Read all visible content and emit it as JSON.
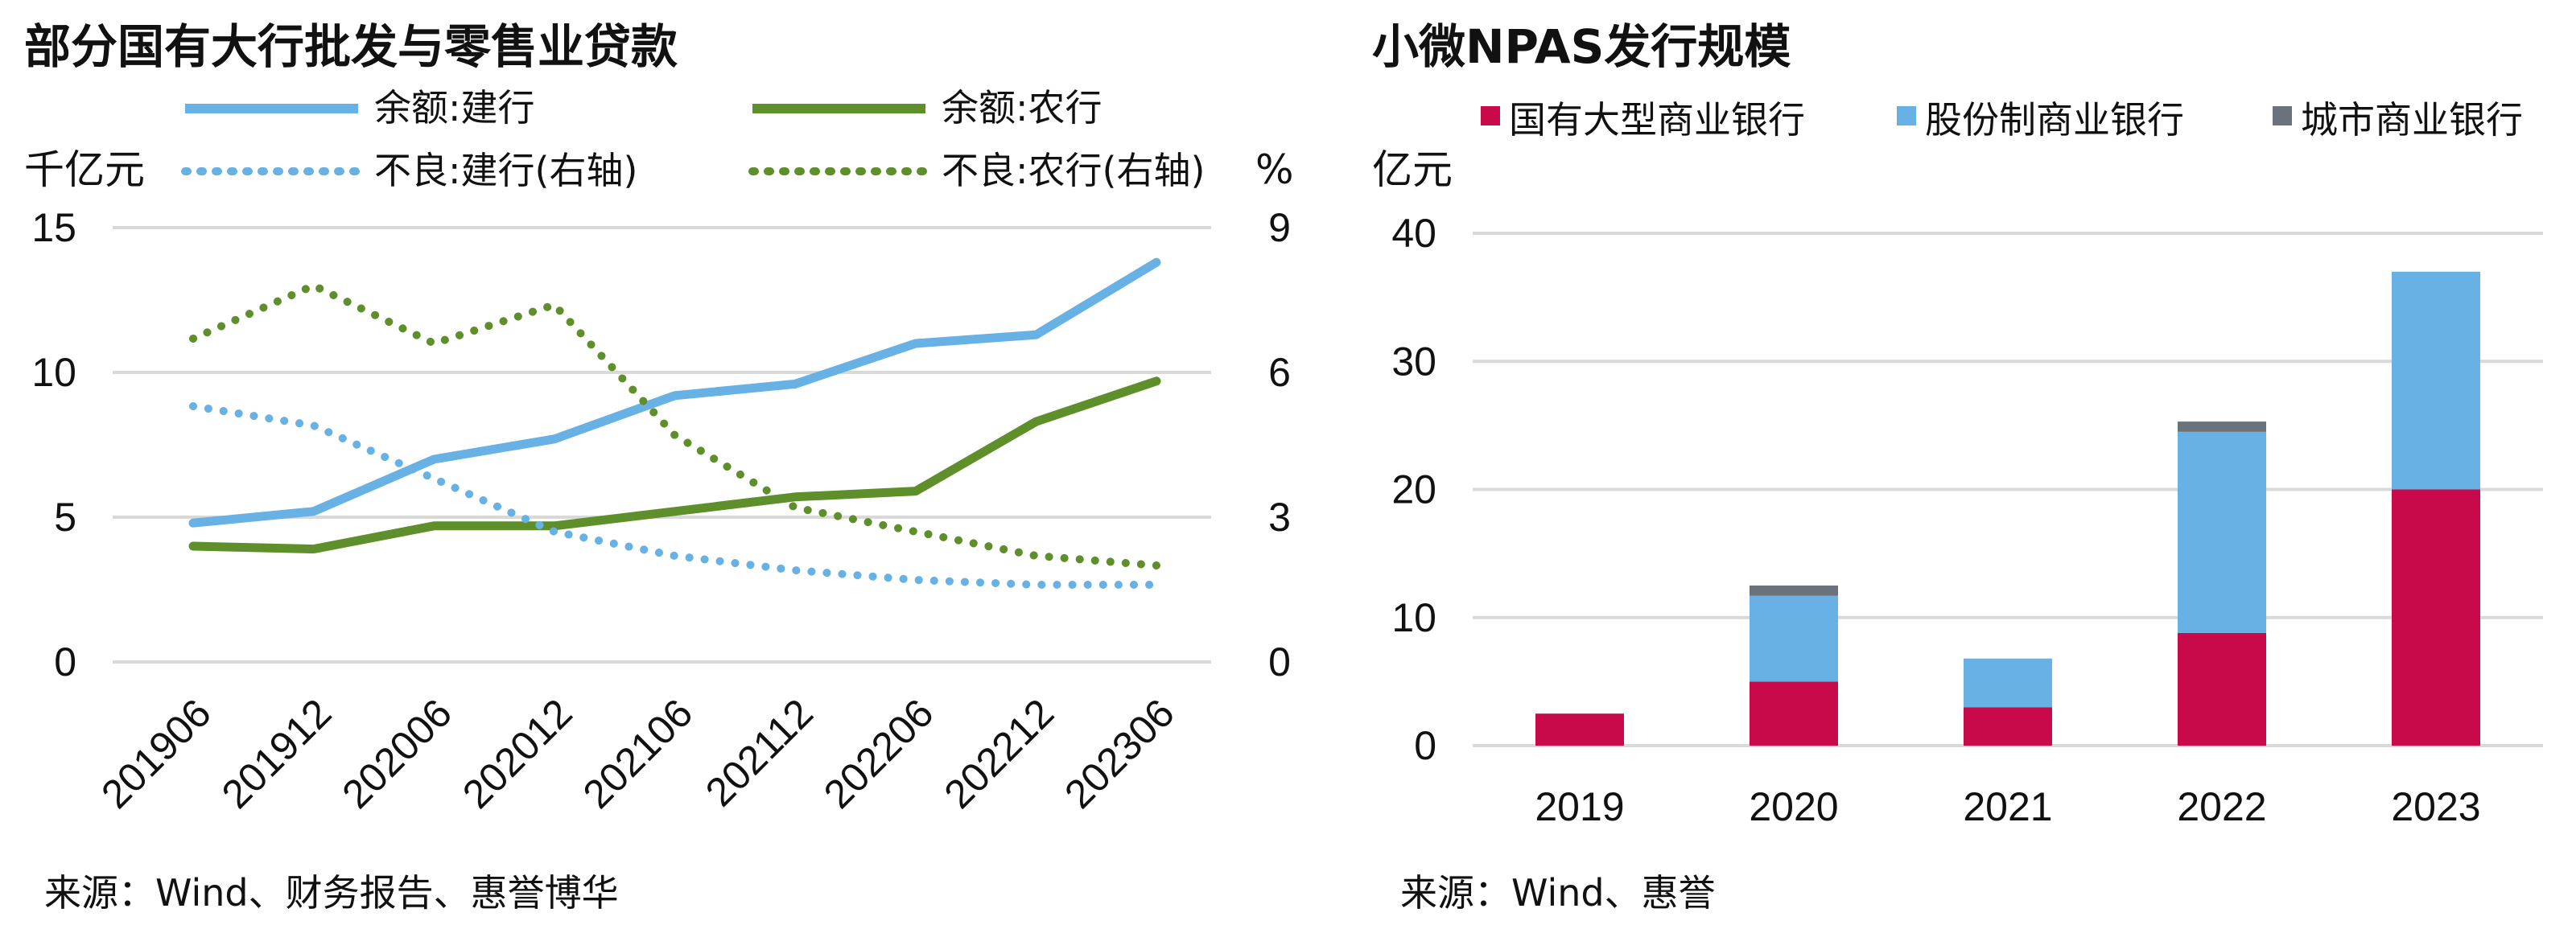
{
  "chart_data": [
    {
      "type": "line",
      "title": "部分国有大行批发与零售业贷款",
      "y_left_unit": "千亿元",
      "y_right_unit": "%",
      "ylim_left": [
        0,
        15
      ],
      "ylim_right": [
        0,
        9
      ],
      "y_left_ticks": [
        "0",
        "5",
        "10",
        "15"
      ],
      "y_right_ticks": [
        "0",
        "3",
        "6",
        "9"
      ],
      "categories": [
        "201906",
        "201912",
        "202006",
        "202012",
        "202106",
        "202112",
        "202206",
        "202212",
        "202306"
      ],
      "series": [
        {
          "name": "余额:建行",
          "axis": "left",
          "style": "solid",
          "color": "#67b1e4",
          "values": [
            4.8,
            5.2,
            7.0,
            7.7,
            9.2,
            9.6,
            11.0,
            11.3,
            13.8
          ]
        },
        {
          "name": "余额:农行",
          "axis": "left",
          "style": "solid",
          "color": "#5f8f2a",
          "values": [
            4.0,
            3.9,
            4.7,
            4.7,
            5.2,
            5.7,
            5.9,
            8.3,
            9.7
          ]
        },
        {
          "name": "不良:建行(右轴)",
          "axis": "right",
          "style": "dotted",
          "color": "#67b1e4",
          "values": [
            5.3,
            4.9,
            3.8,
            2.7,
            2.2,
            1.9,
            1.7,
            1.6,
            1.6
          ]
        },
        {
          "name": "不良:农行(右轴)",
          "axis": "right",
          "style": "dotted",
          "color": "#5f8f2a",
          "values": [
            6.7,
            7.8,
            6.6,
            7.4,
            4.7,
            3.2,
            2.7,
            2.2,
            2.0
          ]
        }
      ],
      "source": "来源：Wind、财务报告、惠誉博华"
    },
    {
      "type": "bar",
      "stacked": true,
      "title": "小微NPAS发行规模",
      "y_unit": "亿元",
      "ylim": [
        0,
        40
      ],
      "y_ticks": [
        "0",
        "10",
        "20",
        "30",
        "40"
      ],
      "categories": [
        "2019",
        "2020",
        "2021",
        "2022",
        "2023"
      ],
      "series": [
        {
          "name": "国有大型商业银行",
          "color": "#c8094a",
          "values": [
            2.5,
            5.0,
            3.0,
            8.8,
            20.0
          ]
        },
        {
          "name": "股份制商业银行",
          "color": "#67b1e4",
          "values": [
            0,
            6.7,
            3.8,
            15.7,
            17.0
          ]
        },
        {
          "name": "城市商业银行",
          "color": "#6a727c",
          "values": [
            0,
            0.8,
            0,
            0.8,
            0
          ]
        }
      ],
      "source": "来源：Wind、惠誉"
    }
  ]
}
